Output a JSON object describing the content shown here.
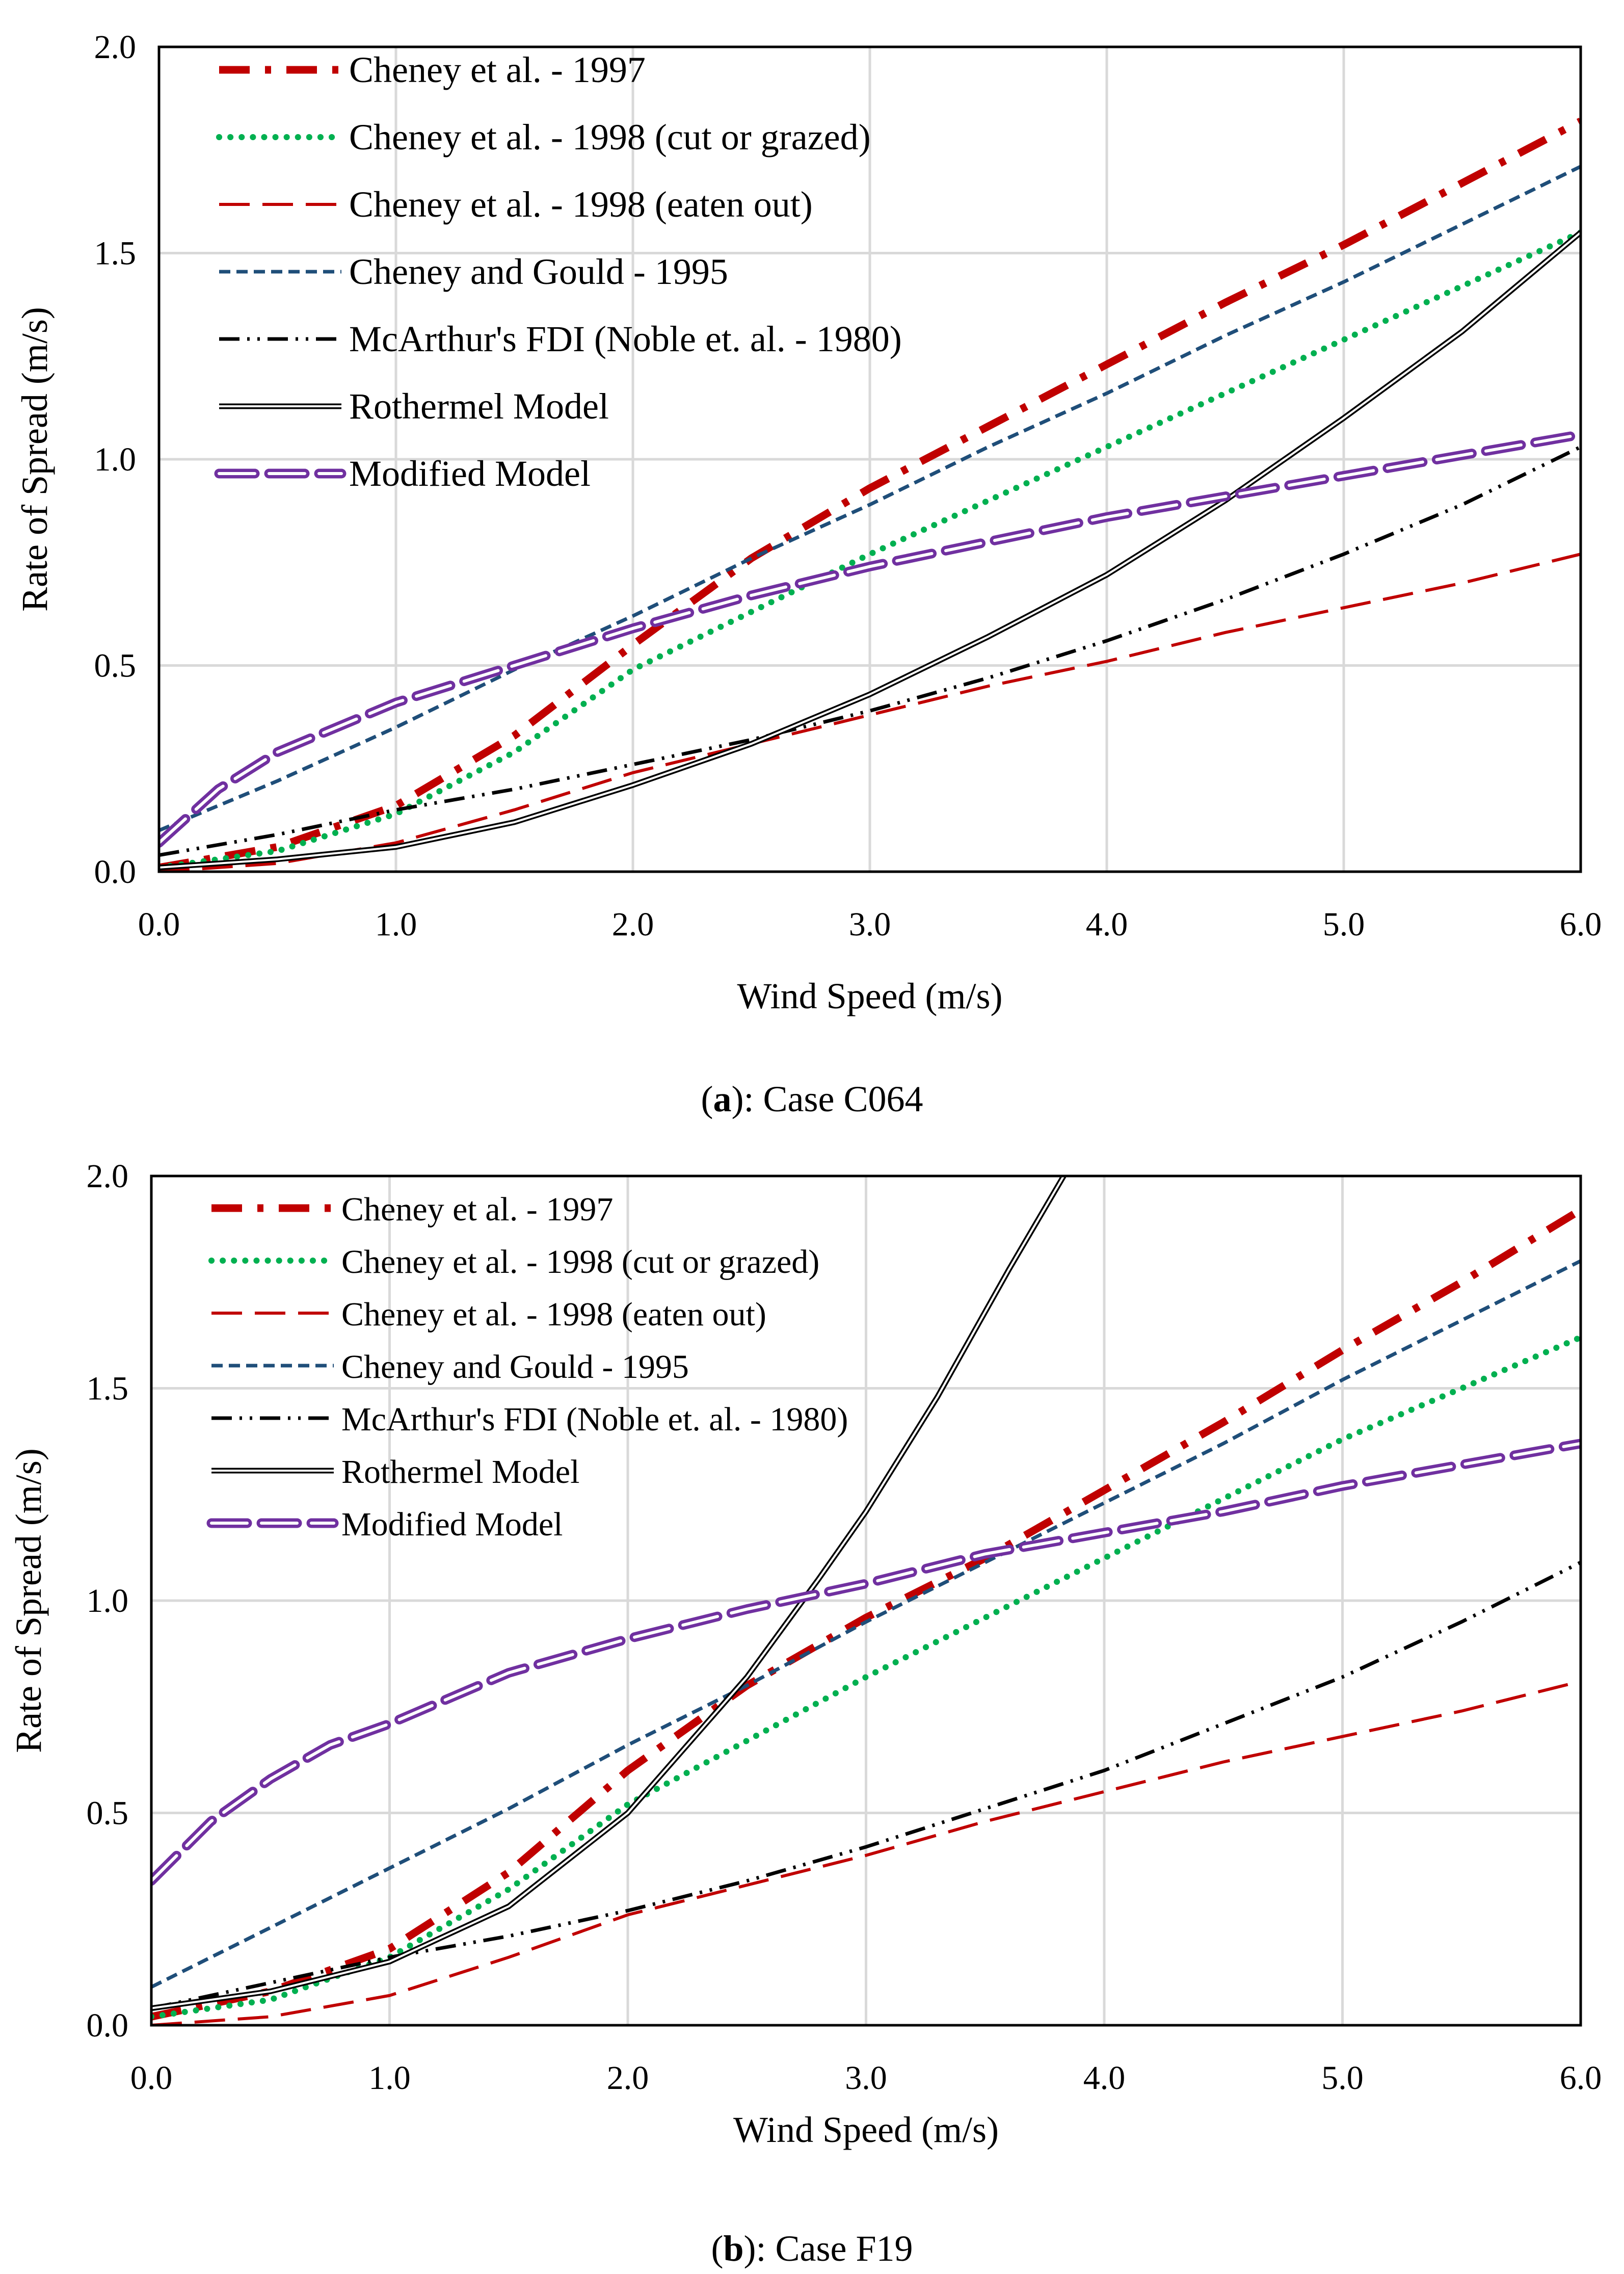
{
  "figure": {
    "captions": [
      {
        "letter": "a",
        "text": "): Case C064"
      },
      {
        "letter": "b",
        "text": "): Case F19"
      }
    ]
  },
  "chart_data": [
    {
      "type": "line",
      "panel": "a",
      "title": "",
      "xlabel": "Wind Speed (m/s)",
      "ylabel": "Rate of Spread (m/s)",
      "xlim": [
        0,
        6
      ],
      "ylim": [
        0,
        2
      ],
      "xticks": [
        "0.0",
        "1.0",
        "2.0",
        "3.0",
        "4.0",
        "5.0",
        "6.0"
      ],
      "yticks": [
        "0.0",
        "0.5",
        "1.0",
        "1.5",
        "2.0"
      ],
      "grid": true,
      "legend_position": "top-left",
      "series": [
        {
          "name": "Cheney et al. - 1997",
          "style": "dashdot-red",
          "x": [
            0,
            0.5,
            1,
            1.5,
            2,
            2.5,
            3,
            3.5,
            4,
            4.5,
            5,
            5.5,
            6
          ],
          "y": [
            0.01,
            0.06,
            0.16,
            0.33,
            0.55,
            0.76,
            0.93,
            1.08,
            1.23,
            1.38,
            1.52,
            1.67,
            1.82
          ]
        },
        {
          "name": "Cheney et al. - 1998 (cut or grazed)",
          "style": "dotted-green",
          "x": [
            0,
            0.5,
            1,
            1.5,
            2,
            2.5,
            3,
            3.5,
            4,
            4.5,
            5,
            5.5,
            6
          ],
          "y": [
            0.01,
            0.05,
            0.14,
            0.29,
            0.49,
            0.63,
            0.77,
            0.9,
            1.03,
            1.16,
            1.29,
            1.42,
            1.55
          ]
        },
        {
          "name": "Cheney et al. - 1998 (eaten out)",
          "style": "longdash-red",
          "x": [
            0,
            0.5,
            1,
            1.5,
            2,
            2.5,
            3,
            3.5,
            4,
            4.5,
            5,
            5.5,
            6
          ],
          "y": [
            0.0,
            0.02,
            0.07,
            0.15,
            0.24,
            0.31,
            0.38,
            0.45,
            0.51,
            0.58,
            0.64,
            0.7,
            0.77
          ]
        },
        {
          "name": "Cheney and Gould - 1995",
          "style": "shortdash-blue",
          "x": [
            0,
            0.5,
            1,
            1.5,
            2,
            2.5,
            3,
            3.5,
            4,
            4.5,
            5,
            5.5,
            6
          ],
          "y": [
            0.1,
            0.22,
            0.35,
            0.49,
            0.62,
            0.76,
            0.89,
            1.03,
            1.16,
            1.3,
            1.43,
            1.57,
            1.71
          ]
        },
        {
          "name": "McArthur's FDI (Noble et. al. - 1980)",
          "style": "dashdotdot-black",
          "x": [
            0,
            0.5,
            1,
            1.5,
            2,
            2.5,
            3,
            3.5,
            4,
            4.5,
            5,
            5.5,
            6
          ],
          "y": [
            0.04,
            0.09,
            0.15,
            0.2,
            0.26,
            0.32,
            0.39,
            0.47,
            0.56,
            0.66,
            0.77,
            0.89,
            1.03
          ]
        },
        {
          "name": "Rothermel Model",
          "style": "double-black",
          "x": [
            0,
            0.5,
            1,
            1.5,
            2,
            2.5,
            3,
            3.5,
            4,
            4.5,
            5,
            5.5,
            6
          ],
          "y": [
            0.01,
            0.03,
            0.06,
            0.12,
            0.21,
            0.31,
            0.43,
            0.57,
            0.72,
            0.9,
            1.1,
            1.31,
            1.55
          ]
        },
        {
          "name": "Modified Model",
          "style": "doubledash-purple",
          "x": [
            0,
            0.25,
            0.5,
            1,
            1.5,
            2,
            2.5,
            3,
            3.5,
            4,
            4.5,
            5,
            5.5,
            6
          ],
          "y": [
            0.07,
            0.2,
            0.29,
            0.41,
            0.5,
            0.59,
            0.67,
            0.74,
            0.8,
            0.86,
            0.91,
            0.96,
            1.01,
            1.06
          ]
        }
      ]
    },
    {
      "type": "line",
      "panel": "b",
      "title": "",
      "xlabel": "Wind Speed (m/s)",
      "ylabel": "Rate of Spread (m/s)",
      "xlim": [
        0,
        6
      ],
      "ylim": [
        0,
        2
      ],
      "xticks": [
        "0.0",
        "1.0",
        "2.0",
        "3.0",
        "4.0",
        "5.0",
        "6.0"
      ],
      "yticks": [
        "0.0",
        "0.5",
        "1.0",
        "1.5",
        "2.0"
      ],
      "grid": true,
      "legend_position": "top-left",
      "series": [
        {
          "name": "Cheney et al. - 1997",
          "style": "dashdot-red",
          "x": [
            0,
            0.5,
            1,
            1.5,
            2,
            2.5,
            3,
            3.5,
            4,
            4.5,
            5,
            5.5,
            6
          ],
          "y": [
            0.02,
            0.08,
            0.18,
            0.36,
            0.6,
            0.8,
            0.96,
            1.1,
            1.26,
            1.42,
            1.59,
            1.75,
            1.92
          ]
        },
        {
          "name": "Cheney et al. - 1998 (cut or grazed)",
          "style": "dotted-green",
          "x": [
            0,
            0.5,
            1,
            1.5,
            2,
            2.5,
            3,
            3.5,
            4,
            4.5,
            5,
            5.5,
            6
          ],
          "y": [
            0.02,
            0.06,
            0.16,
            0.32,
            0.52,
            0.67,
            0.82,
            0.96,
            1.1,
            1.24,
            1.38,
            1.5,
            1.62
          ]
        },
        {
          "name": "Cheney et al. - 1998 (eaten out)",
          "style": "longdash-red",
          "x": [
            0,
            0.5,
            1,
            1.5,
            2,
            2.5,
            3,
            3.5,
            4,
            4.5,
            5,
            5.5,
            6
          ],
          "y": [
            0.0,
            0.02,
            0.07,
            0.16,
            0.26,
            0.33,
            0.4,
            0.48,
            0.55,
            0.62,
            0.68,
            0.74,
            0.81
          ]
        },
        {
          "name": "Cheney and Gould - 1995",
          "style": "shortdash-blue",
          "x": [
            0,
            0.5,
            1,
            1.5,
            2,
            2.5,
            3,
            3.5,
            4,
            4.5,
            5,
            5.5,
            6
          ],
          "y": [
            0.09,
            0.23,
            0.37,
            0.51,
            0.66,
            0.8,
            0.95,
            1.09,
            1.23,
            1.37,
            1.52,
            1.66,
            1.8
          ]
        },
        {
          "name": "McArthur's FDI (Noble et. al. - 1980)",
          "style": "dashdotdot-black",
          "x": [
            0,
            0.5,
            1,
            1.5,
            2,
            2.5,
            3,
            3.5,
            4,
            4.5,
            5,
            5.5,
            6
          ],
          "y": [
            0.04,
            0.1,
            0.16,
            0.21,
            0.27,
            0.34,
            0.42,
            0.51,
            0.6,
            0.71,
            0.82,
            0.95,
            1.09
          ]
        },
        {
          "name": "Rothermel Model",
          "style": "double-black",
          "x": [
            0,
            0.5,
            1,
            1.5,
            2,
            2.5,
            2.8,
            3,
            3.3,
            3.6,
            3.83
          ],
          "y": [
            0.04,
            0.08,
            0.15,
            0.28,
            0.5,
            0.82,
            1.05,
            1.21,
            1.48,
            1.78,
            2.0
          ]
        },
        {
          "name": "Modified Model",
          "style": "doubledash-purple",
          "x": [
            0,
            0.25,
            0.5,
            0.75,
            1,
            1.5,
            2,
            2.5,
            3,
            3.5,
            4,
            4.5,
            5,
            5.5,
            6
          ],
          "y": [
            0.34,
            0.48,
            0.58,
            0.66,
            0.71,
            0.83,
            0.91,
            0.98,
            1.04,
            1.11,
            1.16,
            1.21,
            1.27,
            1.32,
            1.37
          ]
        }
      ]
    }
  ]
}
